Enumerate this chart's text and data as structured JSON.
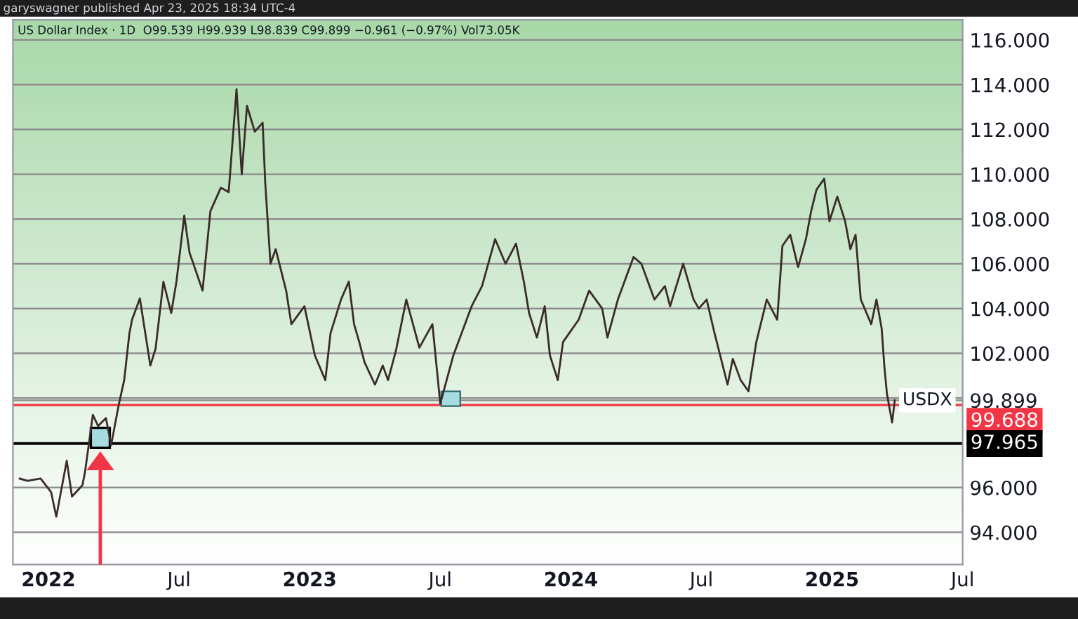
{
  "chart_data": {
    "type": "line",
    "title": "US Dollar Index · 1D",
    "subtitle": "O99.539 H99.939 L98.839 C99.899 −0.961 (−0.97%) Vol73.05K",
    "annotations": [
      "garyswagner published Apr 23, 2025 18:34 UTC-4",
      {
        "text": "USDX",
        "x": 2025.24,
        "y": 99.899
      }
    ],
    "x": [
      2021.89,
      2021.92,
      2021.97,
      2022.01,
      2022.03,
      2022.07,
      2022.09,
      2022.13,
      2022.14,
      2022.17,
      2022.19,
      2022.22,
      2022.24,
      2022.27,
      2022.29,
      2022.31,
      2022.32,
      2022.35,
      2022.39,
      2022.41,
      2022.44,
      2022.47,
      2022.49,
      2022.52,
      2022.54,
      2022.59,
      2022.62,
      2022.66,
      2022.69,
      2022.72,
      2022.74,
      2022.76,
      2022.79,
      2022.82,
      2022.83,
      2022.85,
      2022.87,
      2022.91,
      2022.93,
      2022.98,
      2023.02,
      2023.06,
      2023.08,
      2023.12,
      2023.15,
      2023.17,
      2023.19,
      2023.21,
      2023.25,
      2023.28,
      2023.3,
      2023.33,
      2023.37,
      2023.42,
      2023.47,
      2023.5,
      2023.55,
      2023.62,
      2023.66,
      2023.71,
      2023.75,
      2023.79,
      2023.82,
      2023.84,
      2023.87,
      2023.9,
      2023.92,
      2023.95,
      2023.97,
      2024.03,
      2024.07,
      2024.12,
      2024.14,
      2024.18,
      2024.24,
      2024.27,
      2024.32,
      2024.36,
      2024.38,
      2024.43,
      2024.47,
      2024.49,
      2024.52,
      2024.55,
      2024.6,
      2024.62,
      2024.65,
      2024.68,
      2024.71,
      2024.75,
      2024.79,
      2024.81,
      2024.84,
      2024.87,
      2024.9,
      2024.92,
      2024.94,
      2024.97,
      2024.99,
      2025.02,
      2025.05,
      2025.07,
      2025.09,
      2025.11,
      2025.15,
      2025.17,
      2025.19,
      2025.2,
      2025.21,
      2025.23,
      2025.24
    ],
    "series": [
      {
        "color": "#3b2b2b",
        "values": [
          96.4,
          96.3,
          96.4,
          95.8,
          94.7,
          97.2,
          95.6,
          96.1,
          96.7,
          99.25,
          98.75,
          99.1,
          97.9,
          99.75,
          100.8,
          102.9,
          103.5,
          104.45,
          101.45,
          102.2,
          105.2,
          103.8,
          105.2,
          108.15,
          106.5,
          104.8,
          108.35,
          109.4,
          109.2,
          113.8,
          110.0,
          113.05,
          111.9,
          112.3,
          109.6,
          106.0,
          106.65,
          104.8,
          103.3,
          104.1,
          101.9,
          100.8,
          102.9,
          104.4,
          105.2,
          103.3,
          102.5,
          101.6,
          100.6,
          101.45,
          100.8,
          102.1,
          104.4,
          102.25,
          103.3,
          99.75,
          101.9,
          104.1,
          105.0,
          107.1,
          106.0,
          106.9,
          105.2,
          103.8,
          102.7,
          104.1,
          101.9,
          100.8,
          102.5,
          103.5,
          104.8,
          104.0,
          102.7,
          104.4,
          106.3,
          106.0,
          104.4,
          105.0,
          104.1,
          106.0,
          104.4,
          104.0,
          104.4,
          102.9,
          100.6,
          101.75,
          100.8,
          100.3,
          102.5,
          104.4,
          103.5,
          106.8,
          107.3,
          105.85,
          107.1,
          108.35,
          109.3,
          109.8,
          107.9,
          109.0,
          107.9,
          106.65,
          107.3,
          104.4,
          103.3,
          104.4,
          103.1,
          101.45,
          100.2,
          98.9,
          99.899
        ]
      }
    ],
    "xlim": [
      2021.864,
      2025.5
    ],
    "xticks": [
      {
        "value": 2022,
        "label": "2022"
      },
      {
        "value": 2022.5,
        "label": "Jul"
      },
      {
        "value": 2023,
        "label": "2023"
      },
      {
        "value": 2023.5,
        "label": "Jul"
      },
      {
        "value": 2024,
        "label": "2024"
      },
      {
        "value": 2024.5,
        "label": "Jul"
      },
      {
        "value": 2025,
        "label": "2025"
      },
      {
        "value": 2025.5,
        "label": "Jul"
      }
    ],
    "ylim": [
      92.56,
      116.9
    ],
    "yticks": [
      {
        "value": 94,
        "label": "94.000"
      },
      {
        "value": 96,
        "label": "96.000"
      },
      {
        "value": 98,
        "label": null
      },
      {
        "value": 99.899,
        "label": "99.899"
      },
      {
        "value": 100,
        "label": null
      },
      {
        "value": 102,
        "label": "102.000"
      },
      {
        "value": 104,
        "label": "104.000"
      },
      {
        "value": 106,
        "label": "106.000"
      },
      {
        "value": 108,
        "label": "108.000"
      },
      {
        "value": 110,
        "label": "110.000"
      },
      {
        "value": 112,
        "label": "112.000"
      },
      {
        "value": 114,
        "label": "114.000"
      },
      {
        "value": 116,
        "label": "116.000"
      }
    ],
    "ref_lines": [
      {
        "axis": "y",
        "value": 99.688,
        "label": "99.688",
        "color": "#f23645",
        "line_style": "solid"
      },
      {
        "axis": "y",
        "value": 97.965,
        "label": "97.965",
        "color": "#000000",
        "line_style": "solid"
      }
    ],
    "grid": "y"
  }
}
